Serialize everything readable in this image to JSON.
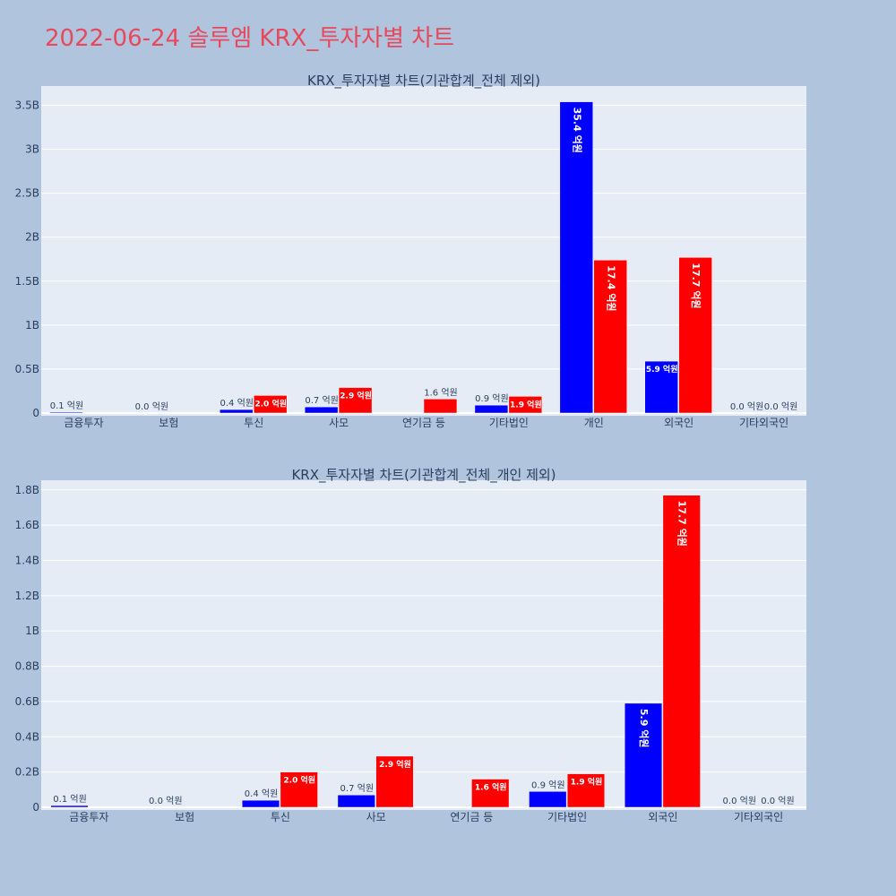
{
  "page": {
    "title": "2022-06-24 솔루엠 KRX_투자자별 차트"
  },
  "colors": {
    "background": "#b0c4de",
    "plot_bg": "#e5ecf6",
    "series_a": "#0000ff",
    "series_b": "#ff0000",
    "title": "#e8485c",
    "text": "#2a3f5f"
  },
  "chart_data": [
    {
      "type": "bar",
      "title": "KRX_투자자별 차트(기관합계_전체 제외)",
      "categories": [
        "금융투자",
        "보험",
        "투신",
        "사모",
        "연기금 등",
        "기타법인",
        "개인",
        "외국인",
        "기타외국인"
      ],
      "yticks": [
        "0",
        "0.5B",
        "1B",
        "1.5B",
        "2B",
        "2.5B",
        "3B",
        "3.5B"
      ],
      "ylim": [
        0,
        3.75
      ],
      "yunit": "B",
      "grid": true,
      "series": [
        {
          "values": [
            0.01,
            0.0,
            0.04,
            0.07,
            0.0,
            0.09,
            3.54,
            0.59,
            0.0
          ],
          "labels": [
            "0.1 억원",
            "0.0 억원",
            "0.4 억원",
            "0.7 억원",
            "",
            "0.9 억원",
            "35.4 억원",
            "5.9 억원",
            "0.0 억원"
          ]
        },
        {
          "values": [
            0.0,
            0.0,
            0.2,
            0.29,
            0.16,
            0.19,
            1.74,
            1.77,
            0.0
          ],
          "labels": [
            "",
            "",
            "2.0 억원",
            "2.9 억원",
            "1.6 억원",
            "1.9 억원",
            "17.4 억원",
            "17.7 억원",
            "0.0 억원"
          ]
        }
      ]
    },
    {
      "type": "bar",
      "title": "KRX_투자자별 차트(기관합계_전체_개인 제외)",
      "categories": [
        "금융투자",
        "보험",
        "투신",
        "사모",
        "연기금 등",
        "기타법인",
        "외국인",
        "기타외국인"
      ],
      "yticks": [
        "0",
        "0.2B",
        "0.4B",
        "0.6B",
        "0.8B",
        "1B",
        "1.2B",
        "1.4B",
        "1.6B",
        "1.8B"
      ],
      "ylim": [
        0,
        1.87
      ],
      "yunit": "B",
      "grid": true,
      "series": [
        {
          "values": [
            0.01,
            0.0,
            0.04,
            0.07,
            0.0,
            0.09,
            0.59,
            0.0
          ],
          "labels": [
            "0.1 억원",
            "0.0 억원",
            "0.4 억원",
            "0.7 억원",
            "",
            "0.9 억원",
            "5.9 억원",
            "0.0 억원"
          ]
        },
        {
          "values": [
            0.0,
            0.0,
            0.2,
            0.29,
            0.16,
            0.19,
            1.77,
            0.0
          ],
          "labels": [
            "",
            "",
            "2.0 억원",
            "2.9 억원",
            "1.6 억원",
            "1.9 억원",
            "17.7 억원",
            "0.0 억원"
          ]
        }
      ]
    }
  ]
}
